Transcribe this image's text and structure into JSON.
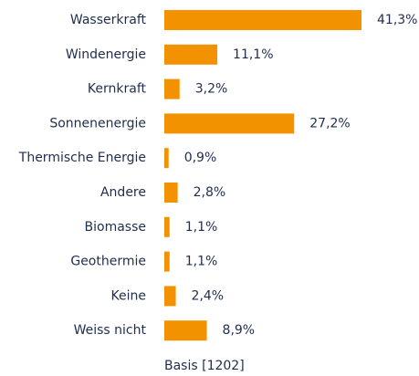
{
  "chart_data": {
    "type": "hbar",
    "categories": [
      "Wasserkraft",
      "Windenergie",
      "Kernkraft",
      "Sonnenenergie",
      "Thermische Energie",
      "Andere",
      "Biomasse",
      "Geothermie",
      "Keine",
      "Weiss nicht"
    ],
    "values": [
      41.3,
      11.1,
      3.2,
      27.2,
      0.9,
      2.8,
      1.1,
      1.1,
      2.4,
      8.9
    ],
    "value_labels": [
      "41,3%",
      "11,1%",
      "3,2%",
      "27,2%",
      "0,9%",
      "2,8%",
      "1,1%",
      "1,1%",
      "2,4%",
      "8,9%"
    ],
    "color": "#f39200",
    "note": "Basis [1202]"
  }
}
